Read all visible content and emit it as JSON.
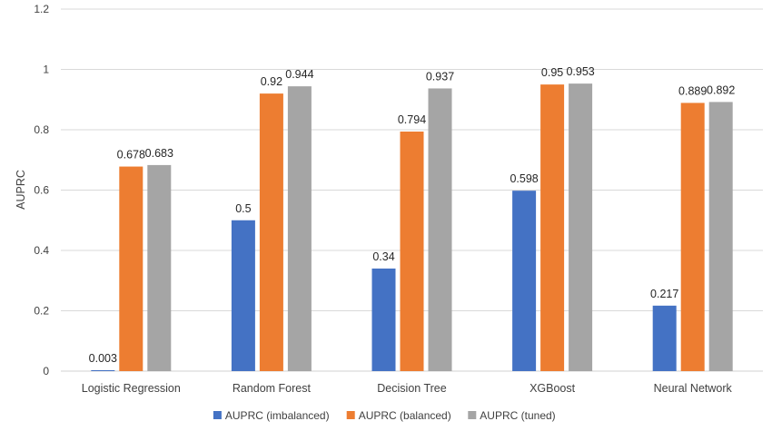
{
  "chart_data": {
    "type": "bar",
    "title": "",
    "xlabel": "",
    "ylabel": "AUPRC",
    "ylim": [
      0,
      1.2
    ],
    "yticks": [
      0,
      0.2,
      0.4,
      0.6,
      0.8,
      1,
      1.2
    ],
    "ytick_labels": [
      "0",
      "0.2",
      "0.4",
      "0.6",
      "0.8",
      "1",
      "1.2"
    ],
    "grid": true,
    "legend_position": "bottom",
    "categories": [
      "Logistic Regression",
      "Random Forest",
      "Decision Tree",
      "XGBoost",
      "Neural Network"
    ],
    "series": [
      {
        "name": "AUPRC (imbalanced)",
        "color": "#4472C4",
        "values": [
          0.003,
          0.5,
          0.34,
          0.598,
          0.217
        ],
        "labels": [
          "0.003",
          "0.5",
          "0.34",
          "0.598",
          "0.217"
        ]
      },
      {
        "name": "AUPRC (balanced)",
        "color": "#ED7D31",
        "values": [
          0.678,
          0.92,
          0.794,
          0.95,
          0.889
        ],
        "labels": [
          "0.678",
          "0.92",
          "0.794",
          "0.95",
          "0.889"
        ]
      },
      {
        "name": "AUPRC (tuned)",
        "color": "#A5A5A5",
        "values": [
          0.683,
          0.944,
          0.937,
          0.953,
          0.892
        ],
        "labels": [
          "0.683",
          "0.944",
          "0.937",
          "0.953",
          "0.892"
        ]
      }
    ]
  }
}
